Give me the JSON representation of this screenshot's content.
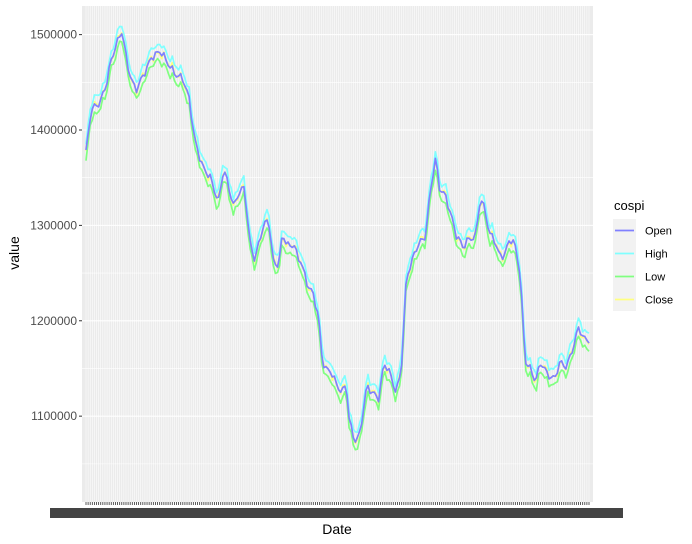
{
  "chart_data": {
    "type": "line",
    "xlabel": "Date",
    "ylabel": "value",
    "x_tick_labels_overplotted": true,
    "ylim": [
      1010000,
      1530000
    ],
    "y_ticks": [
      1100000,
      1200000,
      1300000,
      1400000,
      1500000
    ],
    "y_tick_labels": [
      "1100000",
      "1200000",
      "1300000",
      "1400000",
      "1500000"
    ],
    "grid": true,
    "background": "#ebebeb",
    "legend": {
      "title": "cospi",
      "placement": "right"
    },
    "n_points": 240,
    "series": [
      {
        "name": "Open",
        "color": "#8080ff"
      },
      {
        "name": "High",
        "color": "#80ffff"
      },
      {
        "name": "Low",
        "color": "#80ff80"
      },
      {
        "name": "Close",
        "color": "#ffff80"
      }
    ],
    "path_anchors": [
      [
        0,
        1375000
      ],
      [
        3,
        1420000
      ],
      [
        8,
        1430000
      ],
      [
        12,
        1450000
      ],
      [
        14,
        1468000
      ],
      [
        17,
        1485000
      ],
      [
        21,
        1505000
      ],
      [
        24,
        1470000
      ],
      [
        27,
        1450000
      ],
      [
        29,
        1440000
      ],
      [
        33,
        1455000
      ],
      [
        38,
        1478000
      ],
      [
        43,
        1482000
      ],
      [
        47,
        1470000
      ],
      [
        52,
        1460000
      ],
      [
        56,
        1455000
      ],
      [
        60,
        1430000
      ],
      [
        63,
        1390000
      ],
      [
        68,
        1362000
      ],
      [
        72,
        1350000
      ],
      [
        75,
        1332000
      ],
      [
        77,
        1325000
      ],
      [
        80,
        1362000
      ],
      [
        83,
        1340000
      ],
      [
        86,
        1318000
      ],
      [
        88,
        1330000
      ],
      [
        92,
        1340000
      ],
      [
        95,
        1285000
      ],
      [
        98,
        1265000
      ],
      [
        101,
        1285000
      ],
      [
        103,
        1298000
      ],
      [
        106,
        1305000
      ],
      [
        109,
        1260000
      ],
      [
        112,
        1262000
      ],
      [
        114,
        1290000
      ],
      [
        118,
        1275000
      ],
      [
        121,
        1280000
      ],
      [
        123,
        1265000
      ],
      [
        125,
        1265000
      ],
      [
        128,
        1240000
      ],
      [
        131,
        1230000
      ],
      [
        135,
        1205000
      ],
      [
        137,
        1160000
      ],
      [
        140,
        1150000
      ],
      [
        143,
        1145000
      ],
      [
        146,
        1128000
      ],
      [
        149,
        1125000
      ],
      [
        151,
        1135000
      ],
      [
        153,
        1095000
      ],
      [
        156,
        1075000
      ],
      [
        159,
        1080000
      ],
      [
        163,
        1130000
      ],
      [
        167,
        1125000
      ],
      [
        170,
        1120000
      ],
      [
        173,
        1155000
      ],
      [
        176,
        1145000
      ],
      [
        180,
        1125000
      ],
      [
        183,
        1150000
      ],
      [
        186,
        1245000
      ],
      [
        190,
        1265000
      ],
      [
        193,
        1280000
      ],
      [
        197,
        1290000
      ],
      [
        200,
        1338000
      ],
      [
        203,
        1370000
      ],
      [
        205,
        1338000
      ],
      [
        209,
        1330000
      ],
      [
        212,
        1312000
      ],
      [
        215,
        1290000
      ],
      [
        219,
        1275000
      ],
      [
        222,
        1285000
      ],
      [
        226,
        1290000
      ],
      [
        229,
        1330000
      ],
      [
        232,
        1312000
      ],
      [
        234,
        1290000
      ],
      [
        237,
        1285000
      ],
      [
        240,
        1270000
      ],
      [
        243,
        1270000
      ],
      [
        246,
        1285000
      ],
      [
        249,
        1278000
      ],
      [
        252,
        1250000
      ],
      [
        255,
        1160000
      ],
      [
        258,
        1150000
      ],
      [
        261,
        1135000
      ],
      [
        264,
        1155000
      ],
      [
        268,
        1145000
      ],
      [
        272,
        1140000
      ],
      [
        275,
        1155000
      ],
      [
        279,
        1150000
      ],
      [
        283,
        1175000
      ],
      [
        286,
        1195000
      ],
      [
        289,
        1180000
      ],
      [
        292,
        1178000
      ]
    ]
  }
}
